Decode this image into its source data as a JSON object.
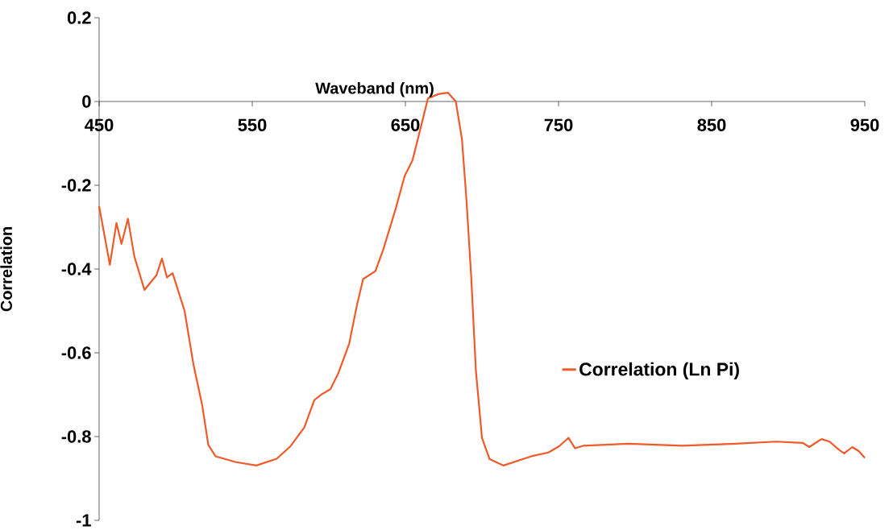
{
  "chart_data": {
    "type": "line",
    "xlabel": "Waveband (nm)",
    "ylabel": "Correlation",
    "xlim": [
      450,
      950
    ],
    "xticks": [
      450,
      550,
      650,
      750,
      850,
      950
    ],
    "ylim": [
      -1,
      0.2
    ],
    "yticks": [
      -1,
      -0.8,
      -0.6,
      -0.4,
      -0.2,
      0,
      0.2
    ],
    "legend": "right",
    "grid": false,
    "marker": "none",
    "line_style": "solid",
    "series": [
      {
        "name": "Correlation (Ln Pi)",
        "color": "#f05a28",
        "x": [
          450,
          457,
          461.3,
          464.6,
          468.8,
          473,
          479.6,
          487.4,
          491,
          494.3,
          498,
          505.8,
          511.7,
          517.3,
          521.3,
          526,
          539.4,
          552.7,
          566,
          575,
          584,
          590.5,
          595.8,
          601,
          606.3,
          613.3,
          618.6,
          622.4,
          630.4,
          635.5,
          643.5,
          649.6,
          654.6,
          659.7,
          664.7,
          671.8,
          677.8,
          682.9,
          686.9,
          689.9,
          693,
          696,
          700,
          705,
          714.1,
          732.3,
          743.4,
          750.4,
          756.5,
          760.8,
          766,
          795.8,
          830.8,
          865.7,
          892,
          909.4,
          913.8,
          921.7,
          927,
          933,
          936.5,
          941.8,
          946.2,
          950
        ],
        "values": [
          -0.25,
          -0.39,
          -0.29,
          -0.34,
          -0.28,
          -0.37,
          -0.45,
          -0.415,
          -0.375,
          -0.42,
          -0.41,
          -0.5,
          -0.63,
          -0.725,
          -0.82,
          -0.847,
          -0.861,
          -0.869,
          -0.853,
          -0.823,
          -0.778,
          -0.713,
          -0.698,
          -0.687,
          -0.648,
          -0.578,
          -0.482,
          -0.424,
          -0.405,
          -0.354,
          -0.258,
          -0.177,
          -0.141,
          -0.067,
          0.007,
          0.018,
          0.021,
          0.0,
          -0.089,
          -0.236,
          -0.42,
          -0.641,
          -0.803,
          -0.854,
          -0.869,
          -0.847,
          -0.838,
          -0.823,
          -0.803,
          -0.828,
          -0.822,
          -0.817,
          -0.822,
          -0.817,
          -0.812,
          -0.815,
          -0.825,
          -0.806,
          -0.812,
          -0.831,
          -0.84,
          -0.825,
          -0.835,
          -0.851
        ]
      }
    ]
  }
}
